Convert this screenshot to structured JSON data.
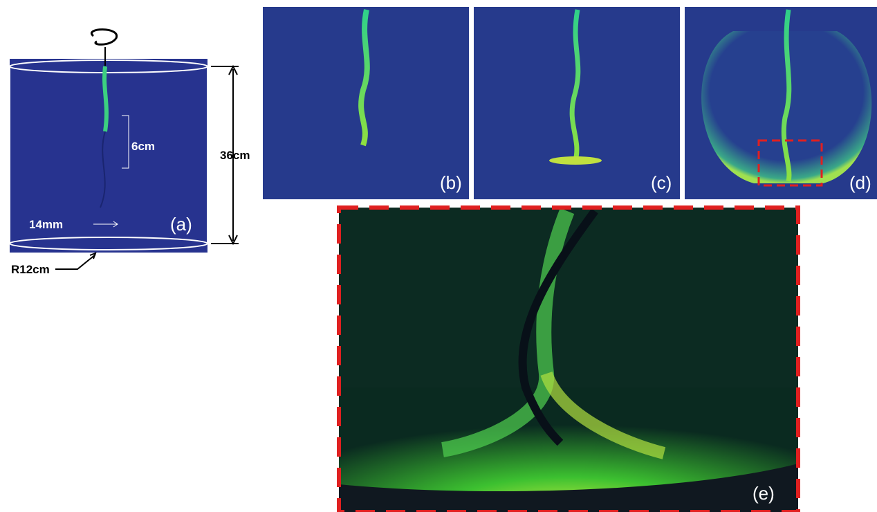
{
  "panels": [
    {
      "label": "(a)"
    },
    {
      "label": "(b)"
    },
    {
      "label": "(c)"
    },
    {
      "label": "(d)"
    },
    {
      "label": "(e)"
    }
  ],
  "annotations": {
    "spacing": "6cm",
    "height": "36cm",
    "diameter": "14mm",
    "radius": "R12cm"
  }
}
